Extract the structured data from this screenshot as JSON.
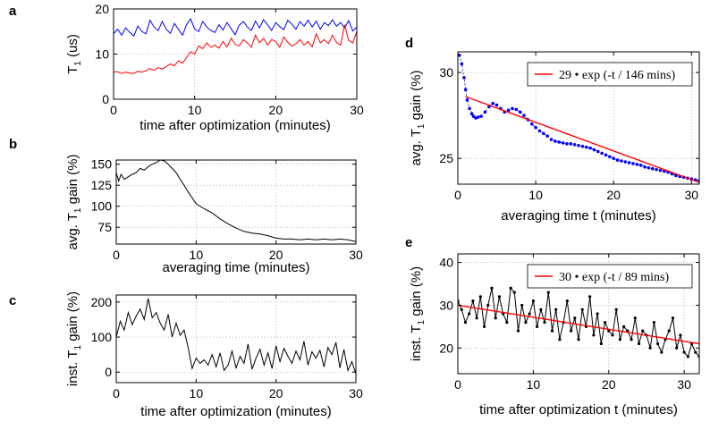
{
  "chart_data": [
    {
      "id": "a",
      "panel_label": "a",
      "type": "line",
      "xlabel": "time after optimization (minutes)",
      "ylabel": "T",
      "ylabel_sub": "1",
      "ylabel_rest": " (us)",
      "xlim": [
        0,
        30
      ],
      "ylim": [
        0,
        20
      ],
      "xticks": [
        0,
        10,
        20,
        30
      ],
      "yticks": [
        0,
        10,
        20
      ],
      "grid": true,
      "series": [
        {
          "color": "#0000ff",
          "x": [
            0,
            0.5,
            1,
            1.5,
            2,
            2.5,
            3,
            3.5,
            4,
            4.5,
            5,
            5.5,
            6,
            6.5,
            7,
            7.5,
            8,
            8.5,
            9,
            9.5,
            10,
            10.5,
            11,
            11.5,
            12,
            12.5,
            13,
            13.5,
            14,
            14.5,
            15,
            15.5,
            16,
            16.5,
            17,
            17.5,
            18,
            18.5,
            19,
            19.5,
            20,
            20.5,
            21,
            21.5,
            22,
            22.5,
            23,
            23.5,
            24,
            24.5,
            25,
            25.5,
            26,
            26.5,
            27,
            27.5,
            28,
            28.5,
            29,
            29.5,
            30
          ],
          "y": [
            14.5,
            15.5,
            14.2,
            15.8,
            14.8,
            14,
            16.2,
            15,
            14.5,
            17.5,
            16,
            15.2,
            17.2,
            15.5,
            14.6,
            16.8,
            15.5,
            14.2,
            16.5,
            17.8,
            15.5,
            15,
            17.2,
            16,
            15.2,
            14.8,
            16.5,
            15.3,
            17,
            15.6,
            14.3,
            16.4,
            17.2,
            16,
            15.2,
            17.3,
            15.8,
            17.6,
            16.5,
            15.2,
            17,
            16.1,
            15.4,
            17.5,
            16.6,
            15.5,
            17.2,
            16.2,
            17.5,
            16,
            17.3,
            15.5,
            17,
            16.3,
            17.6,
            16.2,
            17,
            15.8,
            17.4,
            15.1,
            16
          ]
        },
        {
          "color": "#ff0000",
          "x": [
            0,
            0.5,
            1,
            1.5,
            2,
            2.5,
            3,
            3.5,
            4,
            4.5,
            5,
            5.5,
            6,
            6.5,
            7,
            7.5,
            8,
            8.5,
            9,
            9.5,
            10,
            10.5,
            11,
            11.5,
            12,
            12.5,
            13,
            13.5,
            14,
            14.5,
            15,
            15.5,
            16,
            16.5,
            17,
            17.5,
            18,
            18.5,
            19,
            19.5,
            20,
            20.5,
            21,
            21.5,
            22,
            22.5,
            23,
            23.5,
            24,
            24.5,
            25,
            25.5,
            26,
            26.5,
            27,
            27.5,
            28,
            28.5,
            29,
            29.5,
            30
          ],
          "y": [
            6,
            6.1,
            5.7,
            6,
            5.8,
            5.7,
            6.2,
            6,
            6.3,
            6.8,
            6.4,
            7,
            6.7,
            7.2,
            7.8,
            7.4,
            8.5,
            8,
            9.2,
            10.5,
            10,
            11.8,
            11.2,
            12.5,
            11.5,
            12,
            11.3,
            12.8,
            11.6,
            13.5,
            12.2,
            11.8,
            13.2,
            12.5,
            11.5,
            14.2,
            12.5,
            13.5,
            12,
            13.2,
            12.8,
            11.5,
            13.8,
            12.6,
            11.8,
            12.3,
            13.2,
            12,
            12.8,
            11.6,
            14.5,
            12.5,
            13.2,
            12.3,
            14.2,
            12.6,
            12,
            16.5,
            13,
            12.5,
            15
          ]
        }
      ]
    },
    {
      "id": "b",
      "panel_label": "b",
      "type": "line",
      "xlabel": "averaging time (minutes)",
      "ylabel": "avg. T",
      "ylabel_sub": "1",
      "ylabel_rest": " gain (%)",
      "xlim": [
        0,
        30
      ],
      "ylim": [
        55,
        155
      ],
      "xticks": [
        0,
        10,
        20,
        30
      ],
      "yticks": [
        75,
        100,
        125,
        150
      ],
      "grid": true,
      "series": [
        {
          "color": "#000000",
          "x": [
            0,
            0.3,
            0.6,
            1,
            1.5,
            2,
            2.5,
            3,
            3.5,
            4,
            4.5,
            5,
            5.5,
            6,
            6.5,
            7,
            7.5,
            8,
            8.5,
            9,
            9.5,
            10,
            11,
            12,
            13,
            14,
            15,
            16,
            17,
            18,
            19,
            20,
            21,
            22,
            23,
            24,
            25,
            26,
            27,
            28,
            29,
            30
          ],
          "y": [
            140,
            130,
            138,
            132,
            135,
            138,
            140,
            145,
            143,
            147,
            150,
            152,
            155,
            154,
            150,
            145,
            140,
            132,
            125,
            117,
            110,
            103,
            97,
            92,
            85,
            79,
            74,
            70,
            68,
            67,
            65,
            62,
            61,
            61,
            60,
            61,
            60,
            61,
            60,
            61,
            60,
            58
          ]
        }
      ]
    },
    {
      "id": "c",
      "panel_label": "c",
      "type": "line",
      "xlabel": "time after optimization (minutes)",
      "ylabel": "inst. T",
      "ylabel_sub": "1",
      "ylabel_rest": " gain (%)",
      "xlim": [
        0,
        30
      ],
      "ylim": [
        -30,
        220
      ],
      "xticks": [
        0,
        10,
        20,
        30
      ],
      "yticks": [
        0,
        100,
        200
      ],
      "grid": true,
      "series": [
        {
          "color": "#000000",
          "x": [
            0,
            0.5,
            1,
            1.5,
            2,
            2.5,
            3,
            3.5,
            4,
            4.5,
            5,
            5.5,
            6,
            6.5,
            7,
            7.5,
            8,
            8.5,
            9,
            9.5,
            10,
            10.5,
            11,
            11.5,
            12,
            12.5,
            13,
            13.5,
            14,
            14.5,
            15,
            15.5,
            16,
            16.5,
            17,
            17.5,
            18,
            18.5,
            19,
            19.5,
            20,
            20.5,
            21,
            21.5,
            22,
            22.5,
            23,
            23.5,
            24,
            24.5,
            25,
            25.5,
            26,
            26.5,
            27,
            27.5,
            28,
            28.5,
            29,
            29.5,
            30
          ],
          "y": [
            100,
            145,
            120,
            170,
            135,
            160,
            180,
            150,
            210,
            155,
            170,
            140,
            120,
            165,
            100,
            140,
            105,
            120,
            70,
            10,
            40,
            25,
            35,
            20,
            50,
            15,
            55,
            5,
            20,
            60,
            12,
            45,
            25,
            80,
            8,
            40,
            65,
            20,
            55,
            10,
            75,
            30,
            68,
            45,
            25,
            60,
            35,
            88,
            20,
            58,
            40,
            62,
            15,
            70,
            50,
            85,
            12,
            65,
            5,
            30,
            -5
          ]
        }
      ]
    },
    {
      "id": "d",
      "panel_label": "d",
      "type": "line",
      "xlabel": "averaging time t (minutes)",
      "ylabel": "avg. T",
      "ylabel_sub": "1",
      "ylabel_rest": " gain (%)",
      "xlim": [
        0,
        31
      ],
      "ylim": [
        23.5,
        31.2
      ],
      "xticks": [
        0,
        10,
        20,
        30
      ],
      "yticks": [
        25,
        30
      ],
      "grid": true,
      "legend": "29 • exp (-t / 146 mins)",
      "legend_position": "top-right",
      "series": [
        {
          "color": "#0000ff",
          "style": "dotted-markers",
          "x": [
            0.2,
            0.5,
            0.8,
            1,
            1.2,
            1.5,
            1.8,
            2,
            2.3,
            2.6,
            3,
            3.5,
            4,
            4.5,
            5,
            5.5,
            6,
            6.5,
            7,
            7.5,
            8,
            8.5,
            9,
            9.5,
            10,
            10.5,
            11,
            11.5,
            12,
            12.5,
            13,
            13.5,
            14,
            14.5,
            15,
            15.5,
            16,
            16.5,
            17,
            17.5,
            18,
            18.5,
            19,
            19.5,
            20,
            20.5,
            21,
            21.5,
            22,
            22.5,
            23,
            23.5,
            24,
            24.5,
            25,
            25.5,
            26,
            26.5,
            27,
            27.5,
            28,
            28.5,
            29,
            29.5,
            30,
            30.5,
            31
          ],
          "y": [
            31,
            30.5,
            29.7,
            29,
            28.4,
            27.9,
            27.6,
            27.45,
            27.35,
            27.4,
            27.45,
            27.7,
            28,
            28.2,
            28.1,
            27.9,
            27.7,
            27.8,
            27.9,
            27.85,
            27.7,
            27.5,
            27.25,
            27,
            26.8,
            26.6,
            26.45,
            26.3,
            26.1,
            26,
            25.95,
            25.9,
            25.85,
            25.85,
            25.8,
            25.75,
            25.7,
            25.65,
            25.6,
            25.5,
            25.4,
            25.3,
            25.2,
            25.1,
            25,
            24.9,
            24.85,
            24.8,
            24.75,
            24.7,
            24.65,
            24.6,
            24.5,
            24.45,
            24.4,
            24.35,
            24.3,
            24.25,
            24.2,
            24.1,
            24,
            23.95,
            23.9,
            23.85,
            23.8,
            23.75,
            23.7
          ]
        },
        {
          "color": "#ff0000",
          "style": "fit",
          "x": [
            1,
            31
          ],
          "y": [
            28.6,
            23.6
          ]
        }
      ]
    },
    {
      "id": "e",
      "panel_label": "e",
      "type": "line",
      "xlabel": "time after optimization t (minutes)",
      "ylabel": "inst. T",
      "ylabel_sub": "1",
      "ylabel_rest": " gain (%)",
      "xlim": [
        0,
        32
      ],
      "ylim": [
        14,
        42
      ],
      "xticks": [
        0,
        10,
        20,
        30
      ],
      "yticks": [
        20,
        30,
        40
      ],
      "grid": true,
      "legend": "30 • exp (-t / 89 mins)",
      "legend_position": "top-right",
      "series": [
        {
          "color": "#000000",
          "style": "markers",
          "x": [
            0,
            0.5,
            1,
            1.5,
            2,
            2.5,
            3,
            3.5,
            4,
            4.5,
            5,
            5.5,
            6,
            6.5,
            7,
            7.5,
            8,
            8.5,
            9,
            9.5,
            10,
            10.5,
            11,
            11.5,
            12,
            12.5,
            13,
            13.5,
            14,
            14.5,
            15,
            15.5,
            16,
            16.5,
            17,
            17.5,
            18,
            18.5,
            19,
            19.5,
            20,
            20.5,
            21,
            21.5,
            22,
            22.5,
            23,
            23.5,
            24,
            24.5,
            25,
            25.5,
            26,
            26.5,
            27,
            27.5,
            28,
            28.5,
            29,
            29.5,
            30,
            30.5,
            31,
            31.5,
            32
          ],
          "y": [
            31,
            29,
            26,
            28,
            31,
            27,
            32,
            25,
            30,
            34,
            27,
            32,
            28,
            26,
            34,
            33,
            24,
            30,
            26,
            28,
            31,
            25,
            29,
            26,
            33,
            24,
            29,
            22,
            26,
            31,
            24,
            27,
            22,
            29,
            25,
            32,
            23,
            28,
            21,
            26,
            24,
            23,
            29,
            22,
            25,
            24,
            22,
            27,
            21,
            24,
            23,
            20,
            26,
            21,
            19,
            22,
            24,
            27,
            20,
            23,
            19,
            18,
            21,
            19,
            18
          ]
        },
        {
          "color": "#ff0000",
          "style": "fit",
          "x": [
            0,
            32
          ],
          "y": [
            30,
            21
          ]
        }
      ]
    }
  ]
}
